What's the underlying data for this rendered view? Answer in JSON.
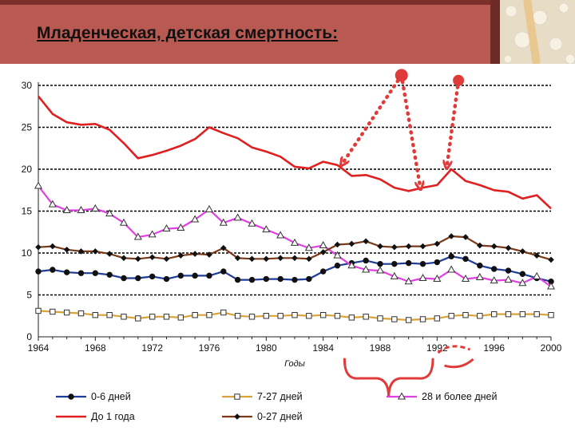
{
  "slide": {
    "title": "Младенческая, детская смертность:"
  },
  "colors": {
    "header": "#b85a52",
    "accent_red": "#e03b3b",
    "pattern": "#e7dcc6"
  },
  "chart_data": {
    "type": "line",
    "title": "",
    "xlabel": "Годы",
    "ylabel": "",
    "xlim": [
      1964,
      2000
    ],
    "ylim": [
      0,
      30
    ],
    "x_ticks": [
      1964,
      1968,
      1972,
      1976,
      1980,
      1984,
      1988,
      1992,
      1996,
      2000
    ],
    "y_ticks": [
      0,
      5,
      10,
      15,
      20,
      25,
      30
    ],
    "grid": "horizontal",
    "legend_position": "bottom",
    "x": [
      1964,
      1965,
      1966,
      1967,
      1968,
      1969,
      1970,
      1971,
      1972,
      1973,
      1974,
      1975,
      1976,
      1977,
      1978,
      1979,
      1980,
      1981,
      1982,
      1983,
      1984,
      1985,
      1986,
      1987,
      1988,
      1989,
      1990,
      1991,
      1992,
      1993,
      1994,
      1995,
      1996,
      1997,
      1998,
      1999,
      2000
    ],
    "series": [
      {
        "name": "0-6 дней",
        "color": "#1f3c96",
        "marker": "circle-filled",
        "values": [
          7.8,
          8.0,
          7.7,
          7.6,
          7.6,
          7.4,
          7.0,
          7.0,
          7.2,
          6.9,
          7.3,
          7.3,
          7.3,
          7.8,
          6.8,
          6.8,
          6.9,
          6.9,
          6.8,
          6.9,
          7.8,
          8.5,
          8.8,
          9.1,
          8.7,
          8.7,
          8.8,
          8.7,
          8.9,
          9.6,
          9.3,
          8.5,
          8.1,
          7.9,
          7.5,
          7.0,
          6.6
        ]
      },
      {
        "name": "7-27 дней",
        "color": "#d9a23a",
        "marker": "square-open",
        "values": [
          3.1,
          3.0,
          2.9,
          2.8,
          2.6,
          2.6,
          2.4,
          2.2,
          2.4,
          2.4,
          2.3,
          2.6,
          2.6,
          2.9,
          2.5,
          2.4,
          2.5,
          2.5,
          2.6,
          2.5,
          2.6,
          2.5,
          2.3,
          2.4,
          2.2,
          2.1,
          2.0,
          2.1,
          2.2,
          2.5,
          2.6,
          2.5,
          2.7,
          2.7,
          2.7,
          2.7,
          2.6
        ]
      },
      {
        "name": "28 и более дней",
        "color": "#e040e0",
        "marker": "triangle-open",
        "values": [
          18.0,
          15.8,
          15.1,
          15.1,
          15.3,
          14.7,
          13.6,
          11.9,
          12.2,
          12.9,
          13.0,
          14.0,
          15.2,
          13.6,
          14.2,
          13.5,
          12.8,
          12.1,
          11.2,
          10.6,
          10.9,
          9.7,
          8.5,
          8.0,
          7.9,
          7.2,
          6.6,
          7.0,
          6.9,
          8.0,
          6.9,
          7.1,
          6.7,
          6.8,
          6.4,
          7.2,
          6.0
        ]
      },
      {
        "name": "До 1 года",
        "color": "#e02020",
        "marker": "none",
        "values": [
          28.7,
          26.6,
          25.6,
          25.3,
          25.4,
          24.7,
          23.1,
          21.3,
          21.7,
          22.2,
          22.8,
          23.6,
          25.0,
          24.3,
          23.7,
          22.6,
          22.1,
          21.5,
          20.3,
          20.1,
          20.9,
          20.5,
          19.2,
          19.3,
          18.8,
          17.8,
          17.4,
          17.8,
          18.1,
          20.0,
          18.6,
          18.1,
          17.5,
          17.3,
          16.5,
          16.9,
          15.3
        ]
      },
      {
        "name": "0-27 дней",
        "color": "#7a3a1a",
        "marker": "diamond-filled",
        "values": [
          10.7,
          10.8,
          10.4,
          10.2,
          10.2,
          9.9,
          9.4,
          9.3,
          9.5,
          9.3,
          9.7,
          9.9,
          9.8,
          10.6,
          9.4,
          9.3,
          9.3,
          9.4,
          9.4,
          9.3,
          10.1,
          11.0,
          11.1,
          11.4,
          10.8,
          10.7,
          10.8,
          10.8,
          11.1,
          12.0,
          11.9,
          10.9,
          10.8,
          10.6,
          10.2,
          9.7,
          9.2
        ]
      }
    ],
    "annotations": [
      {
        "type": "arrow",
        "from_year": 1989.5,
        "from_value": 31.2,
        "to_year": 1985.4,
        "to_value": 20.8
      },
      {
        "type": "arrow",
        "from_year": 1989.5,
        "from_value": 31.2,
        "to_year": 1990.8,
        "to_value": 18.0
      },
      {
        "type": "arrow",
        "from_year": 1993.5,
        "from_value": 30.6,
        "to_year": 1992.7,
        "to_value": 20.5
      },
      {
        "type": "brace",
        "from_year": 1985.5,
        "to_year": 1991.7
      },
      {
        "type": "ellipse-partial",
        "center_year": 1993.3
      }
    ]
  }
}
